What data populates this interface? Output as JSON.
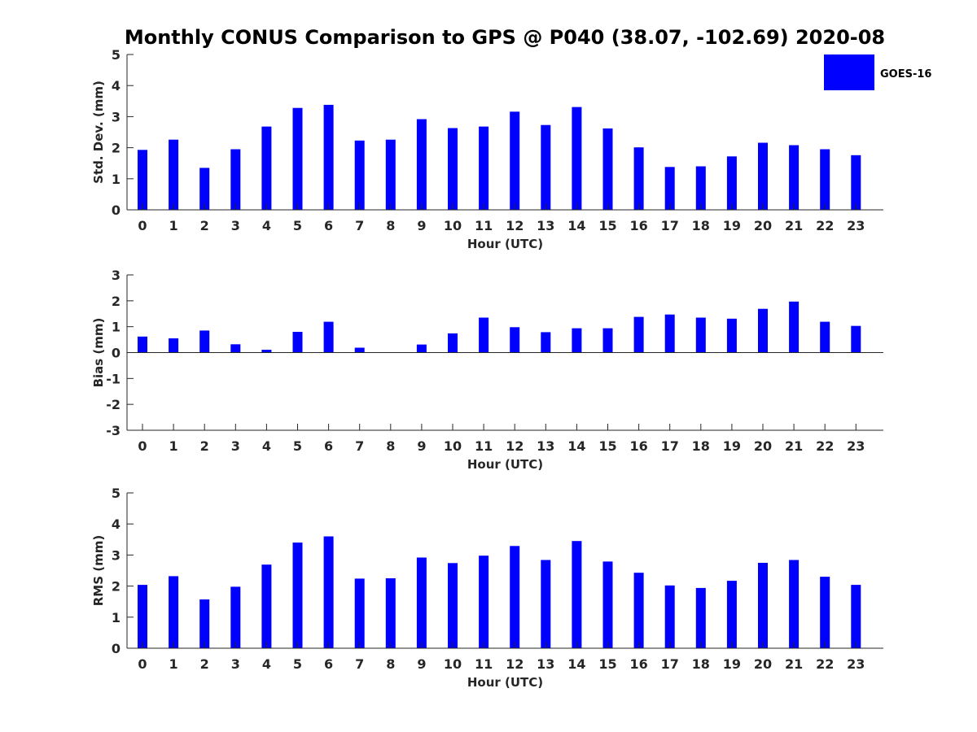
{
  "colors": {
    "bar": "#0000ff",
    "axis": "#262626",
    "background": "#ffffff"
  },
  "chart_data": {
    "type": "bar",
    "title": "Monthly CONUS Comparison to GPS @ P040 (38.07, -102.69) 2020-08",
    "legend": {
      "entries": [
        "GOES-16"
      ],
      "placement": "top-right"
    },
    "panels": [
      {
        "ylabel": "Std. Dev. (mm)",
        "xlabel": "Hour (UTC)",
        "ylim": [
          0,
          5
        ],
        "yticks": [
          0,
          1,
          2,
          3,
          4,
          5
        ],
        "categories": [
          "0",
          "1",
          "2",
          "3",
          "4",
          "5",
          "6",
          "7",
          "8",
          "9",
          "10",
          "11",
          "12",
          "13",
          "14",
          "15",
          "16",
          "17",
          "18",
          "19",
          "20",
          "21",
          "22",
          "23"
        ],
        "series": [
          {
            "name": "GOES-16",
            "values": [
              1.93,
              2.26,
              1.35,
              1.95,
              2.68,
              3.28,
              3.38,
              2.23,
              2.26,
              2.92,
              2.63,
              2.68,
              3.16,
              2.73,
              3.31,
              2.62,
              2.01,
              1.38,
              1.4,
              1.72,
              2.16,
              2.08,
              1.95,
              1.76
            ]
          }
        ]
      },
      {
        "ylabel": "Bias (mm)",
        "xlabel": "Hour (UTC)",
        "ylim": [
          -3,
          3
        ],
        "yticks": [
          -3,
          -2,
          -1,
          0,
          1,
          2,
          3
        ],
        "categories": [
          "0",
          "1",
          "2",
          "3",
          "4",
          "5",
          "6",
          "7",
          "8",
          "9",
          "10",
          "11",
          "12",
          "13",
          "14",
          "15",
          "16",
          "17",
          "18",
          "19",
          "20",
          "21",
          "22",
          "23"
        ],
        "series": [
          {
            "name": "GOES-16",
            "values": [
              0.62,
              0.55,
              0.85,
              0.32,
              0.11,
              0.8,
              1.19,
              0.19,
              0.0,
              0.31,
              0.74,
              1.35,
              0.98,
              0.79,
              0.94,
              0.94,
              1.38,
              1.47,
              1.35,
              1.31,
              1.69,
              1.97,
              1.19,
              1.03
            ]
          }
        ]
      },
      {
        "ylabel": "RMS (mm)",
        "xlabel": "Hour (UTC)",
        "ylim": [
          0,
          5
        ],
        "yticks": [
          0,
          1,
          2,
          3,
          4,
          5
        ],
        "categories": [
          "0",
          "1",
          "2",
          "3",
          "4",
          "5",
          "6",
          "7",
          "8",
          "9",
          "10",
          "11",
          "12",
          "13",
          "14",
          "15",
          "16",
          "17",
          "18",
          "19",
          "20",
          "21",
          "22",
          "23"
        ],
        "series": [
          {
            "name": "GOES-16",
            "values": [
              2.04,
              2.32,
              1.57,
              1.98,
              2.69,
              3.4,
              3.6,
              2.24,
              2.25,
              2.92,
              2.74,
              2.98,
              3.29,
              2.84,
              3.45,
              2.79,
              2.43,
              2.02,
              1.94,
              2.17,
              2.75,
              2.84,
              2.3,
              2.04
            ]
          }
        ]
      }
    ]
  }
}
